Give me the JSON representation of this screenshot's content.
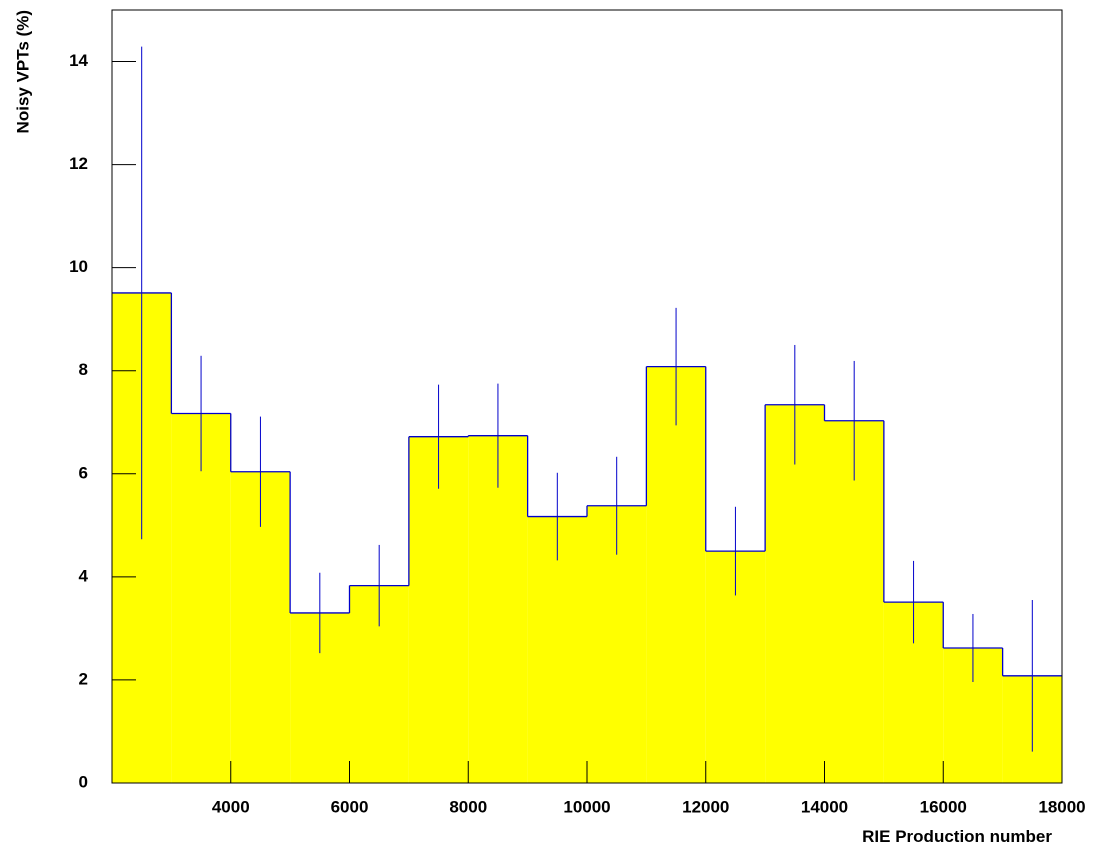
{
  "chart_data": {
    "type": "histogram",
    "x_label": "RIE Production number",
    "y_label": "Noisy VPTs (%)",
    "bins": [
      2000,
      3000,
      4000,
      5000,
      6000,
      7000,
      8000,
      9000,
      10000,
      11000,
      12000,
      13000,
      14000,
      15000,
      16000,
      17000,
      18000
    ],
    "values": [
      9.51,
      7.17,
      6.04,
      3.3,
      3.83,
      6.72,
      6.74,
      5.17,
      5.38,
      8.08,
      4.5,
      7.34,
      7.03,
      3.51,
      2.62,
      2.08
    ],
    "errors": [
      4.78,
      1.12,
      1.07,
      0.78,
      0.79,
      1.01,
      1.01,
      0.85,
      0.95,
      1.14,
      0.86,
      1.16,
      1.16,
      0.8,
      0.66,
      1.47
    ],
    "fill_color": "#ffff00",
    "line_color": "#0000cc",
    "xlim": [
      2000,
      18000
    ],
    "ylim": [
      0,
      15
    ],
    "xticks": [
      4000,
      6000,
      8000,
      10000,
      12000,
      14000,
      16000,
      18000
    ],
    "yticks": [
      0,
      2,
      4,
      6,
      8,
      10,
      12,
      14
    ]
  }
}
